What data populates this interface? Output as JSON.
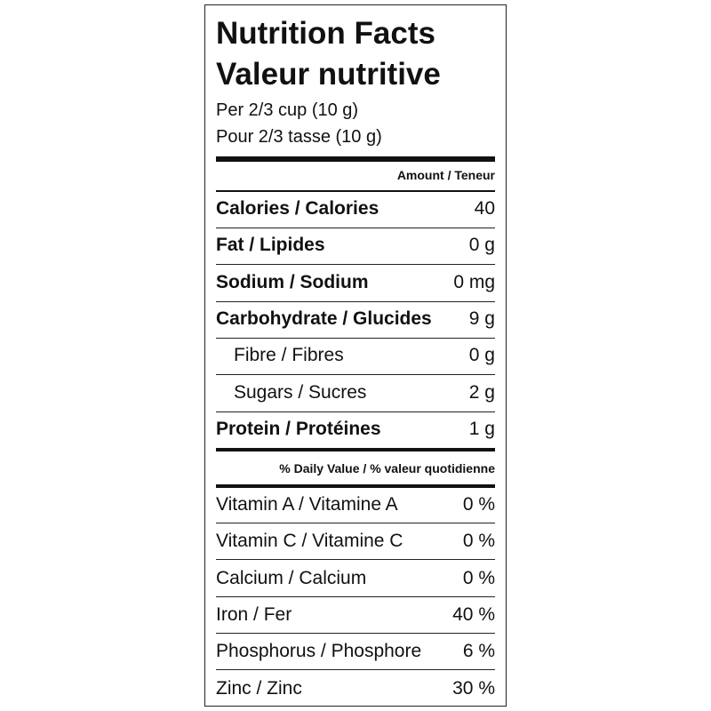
{
  "header": {
    "title": "Nutrition Facts",
    "title_fr": "Valeur nutritive",
    "serving": "Per 2/3 cup (10 g)",
    "serving_fr": "Pour 2/3 tasse (10 g)"
  },
  "amount_heading": "Amount / Teneur",
  "nutrients": [
    {
      "label": "Calories / Calories",
      "amount": "40"
    },
    {
      "label": "Fat / Lipides",
      "amount": "0 g"
    },
    {
      "label": "Sodium / Sodium",
      "amount": "0 mg"
    },
    {
      "label": "Carbohydrate / Glucides",
      "amount": "9 g"
    },
    {
      "label": "Fibre / Fibres",
      "amount": "0 g"
    },
    {
      "label": "Sugars / Sucres",
      "amount": "2 g"
    },
    {
      "label": "Protein / Protéines",
      "amount": "1 g"
    }
  ],
  "daily_value_heading": "% Daily Value / % valeur quotidienne",
  "vitamins": [
    {
      "label": "Vitamin A / Vitamine A",
      "value": "0 %"
    },
    {
      "label": "Vitamin C / Vitamine C",
      "value": "0 %"
    },
    {
      "label": "Calcium / Calcium",
      "value": "0 %"
    },
    {
      "label": "Iron / Fer",
      "value": "40 %"
    },
    {
      "label": "Phosphorus / Phosphore",
      "value": "6 %"
    },
    {
      "label": "Zinc / Zinc",
      "value": "30 %"
    }
  ]
}
